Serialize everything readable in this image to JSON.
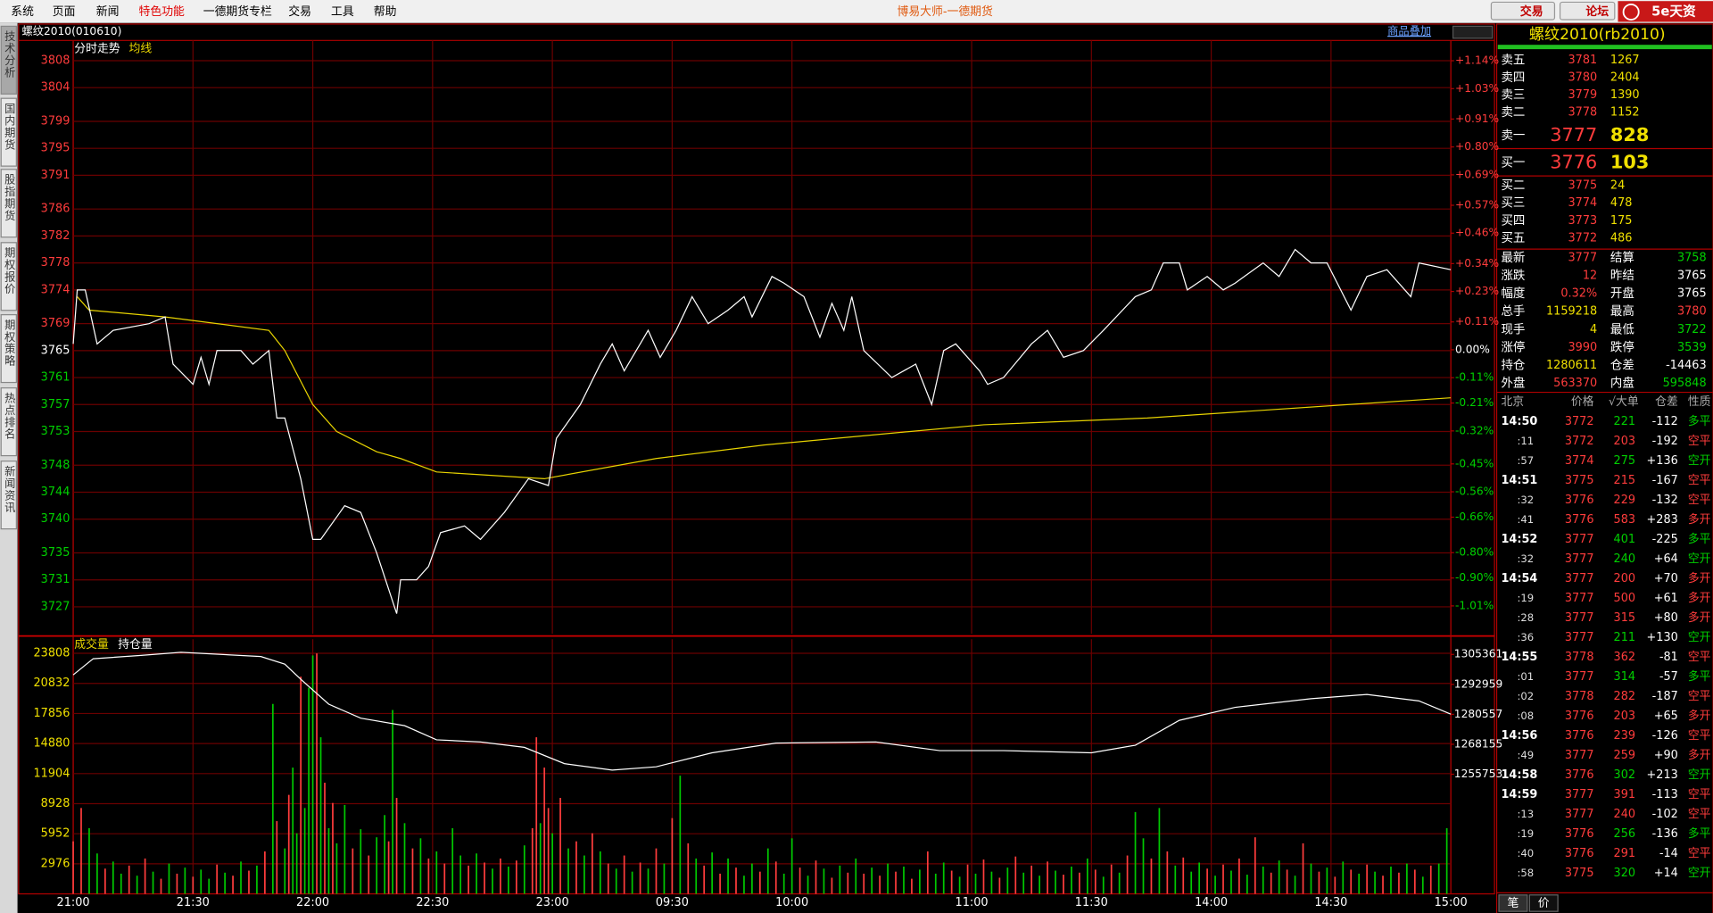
{
  "menu": [
    "系统",
    "页面",
    "新闻",
    "特色功能",
    "一德期货专栏",
    "交易",
    "工具",
    "帮助"
  ],
  "app_title": "博易大师-一德期货",
  "top_buttons": [
    "交易",
    "论坛"
  ],
  "logo": "5e天资",
  "side_tabs": [
    "技术分析",
    "国内期货",
    "股指期货",
    "期权报价",
    "期权策略",
    "热点排名",
    "新闻资讯"
  ],
  "instrument_header": "螺纹2010(010610)",
  "overlay_button": "商品叠加",
  "time_axis": {
    "xlim": [
      0,
      345
    ],
    "xticks": [
      {
        "value": 0,
        "label": "21:00"
      },
      {
        "value": 30,
        "label": "21:30"
      },
      {
        "value": 60,
        "label": "22:00"
      },
      {
        "value": 90,
        "label": "22:30"
      },
      {
        "value": 120,
        "label": "23:00"
      },
      {
        "value": 150,
        "label": "09:30"
      },
      {
        "value": 180,
        "label": "10:00"
      },
      {
        "value": 225,
        "label": "11:00"
      },
      {
        "value": 255,
        "label": "11:30"
      },
      {
        "value": 285,
        "label": "14:00"
      },
      {
        "value": 315,
        "label": "14:30"
      },
      {
        "value": 345,
        "label": "15:00"
      }
    ]
  },
  "price_chart": {
    "type": "line",
    "ylim": [
      3723,
      3811
    ],
    "yticks": [
      3808,
      3804,
      3799,
      3795,
      3791,
      3786,
      3782,
      3778,
      3774,
      3769,
      3765,
      3761,
      3757,
      3753,
      3748,
      3744,
      3740,
      3735,
      3731,
      3727
    ],
    "y2lim": [
      -1.12,
      1.22
    ],
    "y2ticks": [
      {
        "value": 1.14,
        "label": "+1.14%"
      },
      {
        "value": 1.03,
        "label": "+1.03%"
      },
      {
        "value": 0.91,
        "label": "+0.91%"
      },
      {
        "value": 0.8,
        "label": "+0.80%"
      },
      {
        "value": 0.69,
        "label": "+0.69%"
      },
      {
        "value": 0.57,
        "label": "+0.57%"
      },
      {
        "value": 0.46,
        "label": "+0.46%"
      },
      {
        "value": 0.34,
        "label": "+0.34%"
      },
      {
        "value": 0.23,
        "label": "+0.23%"
      },
      {
        "value": 0.11,
        "label": "+0.11%"
      },
      {
        "value": 0,
        "label": "0.00%"
      },
      {
        "value": -0.11,
        "label": "-0.11%"
      },
      {
        "value": -0.21,
        "label": "-0.21%"
      },
      {
        "value": -0.32,
        "label": "-0.32%"
      },
      {
        "value": -0.45,
        "label": "-0.45%"
      },
      {
        "value": -0.56,
        "label": "-0.56%"
      },
      {
        "value": -0.66,
        "label": "-0.66%"
      },
      {
        "value": -0.8,
        "label": "-0.80%"
      },
      {
        "value": -0.9,
        "label": "-0.90%"
      },
      {
        "value": -1.01,
        "label": "-1.01%"
      }
    ],
    "series": [
      {
        "name": "分时走势",
        "color": "#ffffff",
        "x": [
          0,
          1,
          3,
          6,
          10,
          19,
          23,
          25,
          30,
          32,
          34,
          36,
          42,
          45,
          49,
          51,
          53,
          57,
          60,
          62,
          68,
          72,
          76,
          81,
          82,
          86,
          89,
          92,
          98,
          102,
          108,
          114,
          119,
          121,
          127,
          132,
          135,
          138,
          142,
          144,
          147,
          151,
          155,
          159,
          164,
          168,
          170,
          175,
          178,
          183,
          187,
          190,
          193,
          195,
          198,
          205,
          211,
          215,
          218,
          221,
          227,
          229,
          233,
          240,
          244,
          248,
          253,
          258,
          266,
          270,
          273,
          277,
          279,
          284,
          288,
          291,
          298,
          302,
          306,
          310,
          314,
          320,
          324,
          329,
          335,
          337,
          345
        ],
        "values": [
          3766,
          3774,
          3774,
          3766,
          3768,
          3769,
          3770,
          3763,
          3760,
          3764,
          3760,
          3765,
          3765,
          3763,
          3765,
          3755,
          3755,
          3746,
          3737,
          3737,
          3742,
          3741,
          3735,
          3726,
          3731,
          3731,
          3733,
          3738,
          3739,
          3737,
          3741,
          3746,
          3745,
          3752,
          3757,
          3763,
          3766,
          3762,
          3766,
          3768,
          3764,
          3768,
          3773,
          3769,
          3771,
          3773,
          3770,
          3776,
          3775,
          3773,
          3767,
          3772,
          3768,
          3773,
          3765,
          3761,
          3763,
          3757,
          3765,
          3766,
          3762,
          3760,
          3761,
          3766,
          3768,
          3764,
          3765,
          3768,
          3773,
          3774,
          3778,
          3778,
          3774,
          3776,
          3774,
          3775,
          3778,
          3776,
          3780,
          3778,
          3778,
          3771,
          3776,
          3777,
          3773,
          3778,
          3777
        ]
      },
      {
        "name": "均线",
        "color": "#e8d400",
        "x": [
          1,
          4,
          23,
          49,
          53,
          60,
          66,
          76,
          82,
          91,
          118,
          146,
          173,
          228,
          269,
          345
        ],
        "values": [
          3773,
          3771,
          3770,
          3768,
          3765,
          3757,
          3753,
          3750,
          3749,
          3747,
          3746,
          3749,
          3751,
          3754,
          3755,
          3758
        ]
      }
    ]
  },
  "volume_chart": {
    "type": "bar",
    "ylim": [
      0,
      25200
    ],
    "yticks": [
      23808,
      20832,
      17856,
      14880,
      11904,
      8928,
      5952,
      2976
    ],
    "y2lim": [
      1206190,
      1311630
    ],
    "y2ticks": [
      1305361,
      1292959,
      1280557,
      1268155,
      1255753
    ],
    "volume": {
      "name": "成交量",
      "color": "#e8d400",
      "up": {
        "color": "#ff3c3c",
        "x": [
          0,
          2,
          8,
          14,
          18,
          22,
          26,
          30,
          36,
          40,
          44,
          48,
          51,
          54,
          57,
          61,
          63,
          65,
          70,
          74,
          79,
          81,
          85,
          89,
          93,
          99,
          103,
          107,
          111,
          115,
          116,
          118,
          119,
          122,
          126,
          130,
          134,
          138,
          142,
          146,
          150,
          154,
          158,
          162,
          166,
          172,
          176,
          182,
          186,
          190,
          194,
          198,
          202,
          206,
          210,
          214,
          220,
          224,
          228,
          232,
          236,
          240,
          244,
          248,
          252,
          256,
          260,
          264,
          270,
          274,
          278,
          284,
          288,
          292,
          296,
          300,
          304,
          308,
          312,
          316,
          320,
          324,
          328,
          332,
          336,
          340
        ],
        "values": [
          5200,
          8500,
          2500,
          2800,
          3500,
          1500,
          2000,
          1700,
          2900,
          1800,
          2300,
          4200,
          7200,
          9800,
          21500,
          23800,
          11000,
          9000,
          4500,
          3800,
          5200,
          9500,
          4500,
          3500,
          3000,
          2800,
          3100,
          3500,
          3300,
          6500,
          15500,
          12500,
          8500,
          9500,
          5200,
          6000,
          3000,
          3800,
          3100,
          4500,
          7500,
          5000,
          2800,
          2000,
          2600,
          2200,
          3200,
          2600,
          3300,
          1600,
          2100,
          2000,
          1800,
          2200,
          1500,
          4200,
          2300,
          2900,
          3400,
          1600,
          3700,
          2800,
          3200,
          1900,
          2100,
          2400,
          2900,
          3800,
          3500,
          4200,
          3600,
          2500,
          2900,
          3500,
          5600,
          2100,
          2400,
          5000,
          2200,
          1700,
          2400,
          2900,
          1800,
          2100,
          2400,
          2800
        ]
      },
      "down": {
        "color": "#00c800",
        "x": [
          4,
          6,
          10,
          12,
          16,
          20,
          24,
          28,
          32,
          34,
          38,
          42,
          46,
          50,
          53,
          55,
          56,
          58,
          59,
          60,
          62,
          64,
          66,
          68,
          72,
          76,
          78,
          80,
          83,
          87,
          91,
          95,
          97,
          101,
          105,
          109,
          113,
          117,
          120,
          124,
          128,
          132,
          136,
          140,
          144,
          148,
          152,
          156,
          160,
          164,
          168,
          170,
          174,
          178,
          180,
          184,
          188,
          192,
          196,
          200,
          204,
          208,
          212,
          216,
          218,
          222,
          226,
          230,
          234,
          238,
          242,
          246,
          250,
          254,
          258,
          262,
          266,
          268,
          272,
          276,
          280,
          282,
          286,
          290,
          294,
          298,
          302,
          306,
          310,
          314,
          318,
          322,
          326,
          330,
          334,
          338,
          342,
          344
        ],
        "values": [
          6500,
          4000,
          3200,
          2000,
          1800,
          2200,
          3000,
          2600,
          2400,
          1500,
          2100,
          3200,
          2800,
          18800,
          4500,
          12500,
          6000,
          8500,
          20400,
          23600,
          15500,
          6500,
          5000,
          8800,
          6400,
          5600,
          7800,
          18200,
          7000,
          5500,
          4200,
          6500,
          3800,
          4000,
          2500,
          2700,
          4800,
          7000,
          6000,
          4500,
          3800,
          4200,
          2500,
          2200,
          2500,
          3000,
          11700,
          3500,
          4100,
          3500,
          1800,
          3000,
          4500,
          2000,
          5500,
          1800,
          2500,
          2800,
          3500,
          2600,
          3000,
          2700,
          2400,
          2000,
          3100,
          1700,
          2000,
          2200,
          2600,
          2100,
          1800,
          2300,
          2700,
          3500,
          1700,
          2100,
          8100,
          5500,
          8500,
          2800,
          2200,
          3100,
          1800,
          2300,
          1900,
          2700,
          3300,
          1800,
          3000,
          2600,
          3200,
          2000,
          2200,
          2700,
          3000,
          1700,
          3000,
          6500
        ]
      }
    },
    "open_interest": {
      "name": "持仓量",
      "color": "#ffffff",
      "axis": "y2",
      "x": [
        0,
        5,
        17,
        27,
        47,
        53,
        57,
        64,
        72,
        83,
        91,
        102,
        113,
        123,
        135,
        146,
        160,
        176,
        201,
        217,
        233,
        255,
        266,
        277,
        291,
        310,
        324,
        337,
        345
      ],
      "values": [
        1296855,
        1303570,
        1304913,
        1306256,
        1304466,
        1301332,
        1295064,
        1284767,
        1278947,
        1275813,
        1269993,
        1269098,
        1266860,
        1260144,
        1257458,
        1258801,
        1264621,
        1268650,
        1269098,
        1265516,
        1265516,
        1264621,
        1267755,
        1278052,
        1283425,
        1287006,
        1288797,
        1286111,
        1280611
      ]
    }
  },
  "quote_title": "螺纹2010(rb2010)",
  "order_book": [
    [
      "卖五",
      "3781",
      "1267"
    ],
    [
      "卖四",
      "3780",
      "2404"
    ],
    [
      "卖三",
      "3779",
      "1390"
    ],
    [
      "卖二",
      "3778",
      "1152"
    ],
    [
      "卖一",
      "3777",
      "828"
    ],
    [
      "买一",
      "3776",
      "103"
    ],
    [
      "买二",
      "3775",
      "24"
    ],
    [
      "买三",
      "3774",
      "478"
    ],
    [
      "买四",
      "3773",
      "175"
    ],
    [
      "买五",
      "3772",
      "486"
    ]
  ],
  "quote": [
    [
      "最新",
      "3777",
      "结算",
      "3758"
    ],
    [
      "涨跌",
      "12",
      "昨结",
      "3765"
    ],
    [
      "幅度",
      "0.32%",
      "开盘",
      "3765"
    ],
    [
      "总手",
      "1159218",
      "最高",
      "3780"
    ],
    [
      "现手",
      "4",
      "最低",
      "3722"
    ],
    [
      "涨停",
      "3990",
      "跌停",
      "3539"
    ],
    [
      "持仓",
      "1280611",
      "仓差",
      "-14463"
    ],
    [
      "外盘",
      "563370",
      "内盘",
      "595848"
    ]
  ],
  "ticks": {
    "header": [
      "北京",
      "价格",
      "√大单",
      "仓差",
      "性质"
    ],
    "rows": [
      [
        "14:50",
        "3772",
        "221",
        "-112",
        "多平"
      ],
      [
        ":11",
        "3772",
        "203",
        "-192",
        "空平"
      ],
      [
        ":57",
        "3774",
        "275",
        "+136",
        "空开"
      ],
      [
        "14:51",
        "3775",
        "215",
        "-167",
        "空平"
      ],
      [
        ":32",
        "3776",
        "229",
        "-132",
        "空平"
      ],
      [
        ":41",
        "3776",
        "583",
        "+283",
        "多开"
      ],
      [
        "14:52",
        "3777",
        "401",
        "-225",
        "多平"
      ],
      [
        ":32",
        "3777",
        "240",
        "+64",
        "空开"
      ],
      [
        "14:54",
        "3777",
        "200",
        "+70",
        "多开"
      ],
      [
        ":19",
        "3777",
        "500",
        "+61",
        "多开"
      ],
      [
        ":28",
        "3777",
        "315",
        "+80",
        "多开"
      ],
      [
        ":36",
        "3777",
        "211",
        "+130",
        "空开"
      ],
      [
        "14:55",
        "3778",
        "362",
        "-81",
        "空平"
      ],
      [
        ":01",
        "3777",
        "314",
        "-57",
        "多平"
      ],
      [
        ":02",
        "3778",
        "282",
        "-187",
        "空平"
      ],
      [
        ":08",
        "3776",
        "203",
        "+65",
        "多开"
      ],
      [
        "14:56",
        "3776",
        "239",
        "-126",
        "空平"
      ],
      [
        ":49",
        "3777",
        "259",
        "+90",
        "多开"
      ],
      [
        "14:58",
        "3776",
        "302",
        "+213",
        "空开"
      ],
      [
        "14:59",
        "3777",
        "391",
        "-113",
        "空平"
      ],
      [
        ":13",
        "3777",
        "240",
        "-102",
        "空平"
      ],
      [
        ":19",
        "3776",
        "256",
        "-136",
        "多平"
      ],
      [
        ":40",
        "3776",
        "291",
        "-14",
        "空平"
      ],
      [
        ":58",
        "3775",
        "320",
        "+14",
        "空开"
      ]
    ]
  },
  "bottom_tabs": [
    "笔",
    "价"
  ]
}
